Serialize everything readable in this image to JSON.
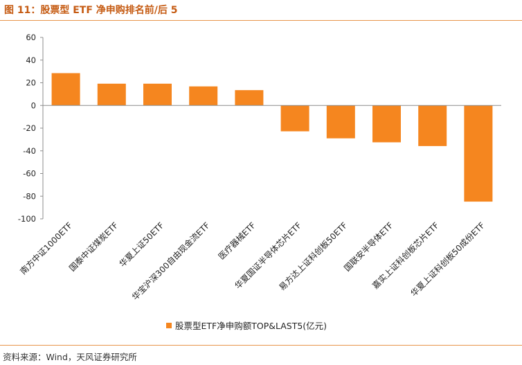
{
  "figure": {
    "title": "图 11：股票型 ETF 净申购排名前/后 5",
    "source": "资料来源：Wind，天风证券研究所"
  },
  "colors": {
    "accent": "#f5861f",
    "title": "#c55a11",
    "rule": "#e8944a"
  },
  "chart_data": {
    "type": "bar",
    "categories": [
      "南方中证1000ETF",
      "国泰中证煤炭ETF",
      "华夏上证50ETF",
      "华宝沪深300自由现金流ETF",
      "医疗器械ETF",
      "华夏国证半导体芯片ETF",
      "易方达上证科创板50ETF",
      "国联安半导体ETF",
      "嘉实上证科创板芯片ETF",
      "华夏上证科创板50成份ETF"
    ],
    "series": [
      {
        "name": "股票型ETF净申购额TOP&LAST5(亿元)",
        "values": [
          28.5,
          19.2,
          19.2,
          16.8,
          13.5,
          -22.8,
          -29.0,
          -32.5,
          -35.8,
          -84.8
        ]
      }
    ],
    "yticks": [
      "60",
      "40",
      "20",
      "0",
      "-20",
      "-40",
      "-60",
      "-80",
      "-100"
    ],
    "ylim": [
      -100,
      60
    ],
    "grid": false,
    "legend_position": "bottom"
  }
}
